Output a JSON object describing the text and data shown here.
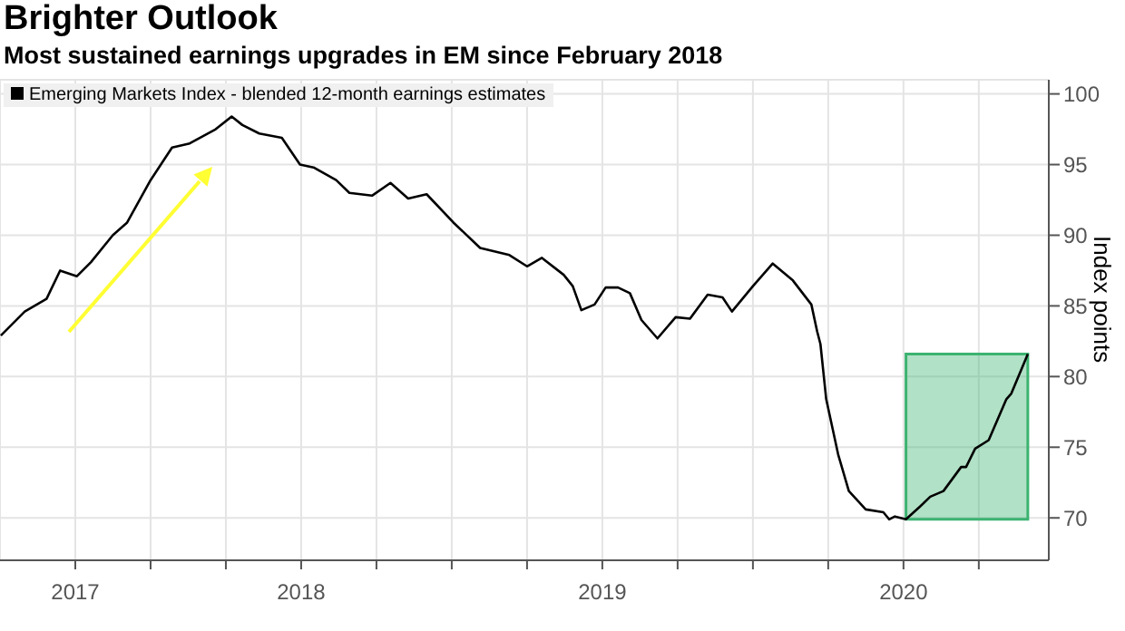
{
  "chart_data": {
    "type": "line",
    "title": "Brighter Outlook",
    "subtitle": "Most sustained earnings upgrades in EM since February 2018",
    "ylabel": "Index points",
    "x": [
      "2017-07-02",
      "2017-07-31",
      "2017-08-27",
      "2017-09-13",
      "2017-10-03",
      "2017-10-20",
      "2017-11-16",
      "2017-12-03",
      "2018-01-01",
      "2018-01-27",
      "2018-02-18",
      "2018-03-19",
      "2018-04-08",
      "2018-04-21",
      "2018-05-11",
      "2018-06-08",
      "2018-06-30",
      "2018-07-16",
      "2018-08-13",
      "2018-08-29",
      "2018-09-26",
      "2018-10-18",
      "2018-11-09",
      "2018-12-01",
      "2019-01-03",
      "2019-02-05",
      "2019-03-10",
      "2019-04-01",
      "2019-04-19",
      "2019-05-15",
      "2019-05-26",
      "2019-06-06",
      "2019-06-22",
      "2019-07-05",
      "2019-07-20",
      "2019-08-04",
      "2019-08-18",
      "2019-09-07",
      "2019-09-29",
      "2019-10-16",
      "2019-11-07",
      "2019-11-25",
      "2019-12-06",
      "2020-01-01",
      "2020-01-25",
      "2020-02-19",
      "2020-03-11",
      "2020-03-18",
      "2020-03-22",
      "2020-03-29",
      "2020-04-13",
      "2020-04-26",
      "2020-05-16",
      "2020-06-07",
      "2020-06-14",
      "2020-06-21",
      "2020-07-04",
      "2020-07-21",
      "2020-08-03",
      "2020-08-19",
      "2020-09-10",
      "2020-09-16",
      "2020-09-27",
      "2020-10-13",
      "2020-11-04",
      "2020-11-10",
      "2020-11-30"
    ],
    "series": [
      {
        "name": "Emerging Markets Index - blended 12-month earnings estimates",
        "color": "#000000",
        "values": [
          82.9,
          84.6,
          85.5,
          87.5,
          87.1,
          88.1,
          90.0,
          90.9,
          93.9,
          96.2,
          96.5,
          97.5,
          98.4,
          97.8,
          97.2,
          96.9,
          95.0,
          94.8,
          93.9,
          93.0,
          92.8,
          93.7,
          92.6,
          92.9,
          90.9,
          89.1,
          88.6,
          87.8,
          88.4,
          87.2,
          86.4,
          84.7,
          85.1,
          86.3,
          86.3,
          85.9,
          84.0,
          82.7,
          84.2,
          84.1,
          85.8,
          85.6,
          84.6,
          86.4,
          88.0,
          86.8,
          85.1,
          83.2,
          82.3,
          78.4,
          74.5,
          71.9,
          70.6,
          70.4,
          69.9,
          70.1,
          69.9,
          70.8,
          71.5,
          71.9,
          73.6,
          73.6,
          74.9,
          75.5,
          78.4,
          78.8,
          81.6
        ]
      }
    ],
    "xlim": [
      "2017-07-01",
      "2020-12-25"
    ],
    "xticks": [
      {
        "value": "2017-10",
        "label": "2017"
      },
      {
        "value": "2018-01",
        "label": null
      },
      {
        "value": "2018-04",
        "label": null
      },
      {
        "value": "2018-07",
        "label": "2018"
      },
      {
        "value": "2018-10",
        "label": null
      },
      {
        "value": "2019-01",
        "label": null
      },
      {
        "value": "2019-04",
        "label": null
      },
      {
        "value": "2019-07",
        "label": "2019"
      },
      {
        "value": "2019-10",
        "label": null
      },
      {
        "value": "2020-01",
        "label": null
      },
      {
        "value": "2020-04",
        "label": null
      },
      {
        "value": "2020-07",
        "label": "2020"
      },
      {
        "value": "2020-10",
        "label": null
      }
    ],
    "ylim": [
      67,
      101
    ],
    "yticks": [
      70,
      75,
      80,
      85,
      90,
      95,
      100
    ],
    "bands": [
      {
        "axis": "x",
        "from": "2020-07-04",
        "to": "2020-11-30",
        "color": "#3cb371"
      }
    ],
    "grid": true,
    "legend": "top left",
    "line_style": "solid",
    "marker": "none"
  }
}
